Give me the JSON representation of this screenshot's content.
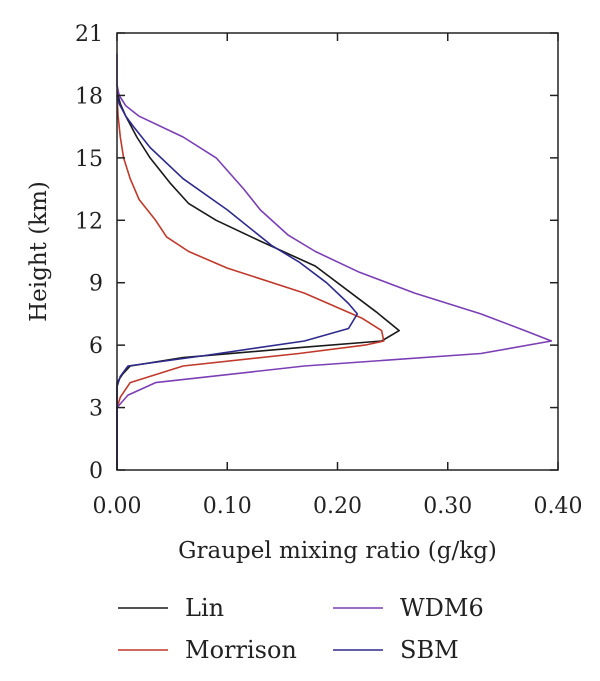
{
  "chart_data": {
    "type": "line",
    "title": "",
    "xlabel": "Graupel mixing ratio (g/kg)",
    "ylabel": "Height (km)",
    "xlim": [
      0,
      0.4
    ],
    "ylim": [
      0,
      21
    ],
    "x_ticks": [
      0,
      0.1,
      0.2,
      0.3,
      0.4
    ],
    "x_tick_labels": [
      "0.00",
      "0.10",
      "0.20",
      "0.30",
      "0.40"
    ],
    "y_ticks": [
      0,
      3,
      6,
      9,
      12,
      15,
      18,
      21
    ],
    "y_tick_labels": [
      "0",
      "3",
      "6",
      "9",
      "12",
      "15",
      "18",
      "21"
    ],
    "grid": false,
    "legend_position": "bottom",
    "series": [
      {
        "name": "Lin",
        "color": "#1a1a1a",
        "points": [
          [
            0.0,
            0.0
          ],
          [
            0.0,
            4.2
          ],
          [
            0.005,
            4.6
          ],
          [
            0.012,
            5.0
          ],
          [
            0.06,
            5.4
          ],
          [
            0.17,
            5.9
          ],
          [
            0.24,
            6.2
          ],
          [
            0.256,
            6.7
          ],
          [
            0.235,
            7.6
          ],
          [
            0.215,
            8.4
          ],
          [
            0.18,
            9.8
          ],
          [
            0.13,
            11.0
          ],
          [
            0.09,
            12.0
          ],
          [
            0.065,
            12.8
          ],
          [
            0.048,
            13.8
          ],
          [
            0.03,
            15.0
          ],
          [
            0.018,
            16.0
          ],
          [
            0.008,
            17.0
          ],
          [
            0.003,
            17.6
          ],
          [
            0.001,
            18.0
          ],
          [
            0.0,
            18.5
          ]
        ]
      },
      {
        "name": "Morrison",
        "color": "#c0392b",
        "points": [
          [
            0.0,
            0.0
          ],
          [
            0.0,
            3.0
          ],
          [
            0.003,
            3.5
          ],
          [
            0.012,
            4.2
          ],
          [
            0.06,
            5.0
          ],
          [
            0.165,
            5.6
          ],
          [
            0.225,
            6.0
          ],
          [
            0.242,
            6.2
          ],
          [
            0.24,
            6.7
          ],
          [
            0.222,
            7.3
          ],
          [
            0.17,
            8.5
          ],
          [
            0.1,
            9.7
          ],
          [
            0.065,
            10.5
          ],
          [
            0.045,
            11.2
          ],
          [
            0.035,
            12.0
          ],
          [
            0.02,
            13.0
          ],
          [
            0.012,
            14.0
          ],
          [
            0.006,
            15.0
          ],
          [
            0.003,
            16.0
          ],
          [
            0.001,
            17.0
          ],
          [
            0.0,
            18.0
          ]
        ]
      },
      {
        "name": "WDM6",
        "color": "#7b3fb5",
        "points": [
          [
            0.0,
            0.0
          ],
          [
            0.0,
            3.0
          ],
          [
            0.01,
            3.6
          ],
          [
            0.035,
            4.2
          ],
          [
            0.17,
            5.0
          ],
          [
            0.33,
            5.6
          ],
          [
            0.394,
            6.2
          ],
          [
            0.37,
            6.7
          ],
          [
            0.33,
            7.5
          ],
          [
            0.27,
            8.5
          ],
          [
            0.22,
            9.5
          ],
          [
            0.18,
            10.5
          ],
          [
            0.155,
            11.3
          ],
          [
            0.13,
            12.5
          ],
          [
            0.115,
            13.5
          ],
          [
            0.09,
            15.0
          ],
          [
            0.06,
            16.0
          ],
          [
            0.02,
            17.0
          ],
          [
            0.008,
            17.5
          ],
          [
            0.002,
            18.0
          ],
          [
            0.0,
            18.5
          ],
          [
            0.0,
            20.0
          ]
        ]
      },
      {
        "name": "SBM",
        "color": "#2e2a8c",
        "points": [
          [
            0.0,
            0.0
          ],
          [
            0.0,
            4.0
          ],
          [
            0.003,
            4.5
          ],
          [
            0.01,
            5.0
          ],
          [
            0.08,
            5.5
          ],
          [
            0.17,
            6.2
          ],
          [
            0.21,
            6.8
          ],
          [
            0.218,
            7.5
          ],
          [
            0.21,
            8.0
          ],
          [
            0.19,
            9.0
          ],
          [
            0.165,
            10.0
          ],
          [
            0.14,
            10.8
          ],
          [
            0.1,
            12.5
          ],
          [
            0.06,
            14.0
          ],
          [
            0.03,
            15.5
          ],
          [
            0.015,
            16.5
          ],
          [
            0.008,
            17.0
          ],
          [
            0.002,
            17.6
          ],
          [
            0.0,
            18.0
          ]
        ]
      }
    ]
  }
}
